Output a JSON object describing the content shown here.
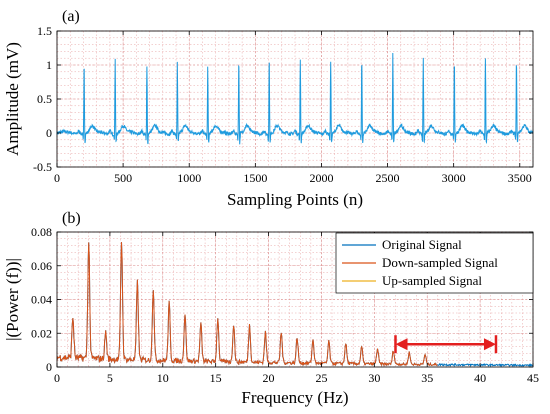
{
  "chart_data": [
    {
      "panel_label": "(a)",
      "type": "line",
      "xlabel": "Sampling Points (n)",
      "ylabel": "Amplitude (mV)",
      "xlim": [
        0,
        3600
      ],
      "ylim": [
        -0.5,
        1.5
      ],
      "xticks": [
        "0",
        "500",
        "1000",
        "1500",
        "2000",
        "2500",
        "3000",
        "3500"
      ],
      "yticks": [
        "-0.5",
        "0",
        "0.5",
        "1",
        "1.5"
      ],
      "grid": true,
      "color": "#1f9bde",
      "baseline": 0.0,
      "r_peaks": [
        {
          "x": 205,
          "y": 1.08
        },
        {
          "x": 440,
          "y": 1.12
        },
        {
          "x": 680,
          "y": 0.98
        },
        {
          "x": 910,
          "y": 1.04
        },
        {
          "x": 1140,
          "y": 0.98
        },
        {
          "x": 1375,
          "y": 1.12
        },
        {
          "x": 1605,
          "y": 1.14
        },
        {
          "x": 1840,
          "y": 1.1
        },
        {
          "x": 2070,
          "y": 1.08
        },
        {
          "x": 2305,
          "y": 1.1
        },
        {
          "x": 2540,
          "y": 1.18
        },
        {
          "x": 2770,
          "y": 1.1
        },
        {
          "x": 3005,
          "y": 1.1
        },
        {
          "x": 3240,
          "y": 1.1
        },
        {
          "x": 3475,
          "y": 1.1
        }
      ]
    },
    {
      "panel_label": "(b)",
      "type": "line",
      "xlabel": "Frequency (Hz)",
      "ylabel": "|(Power (f))|",
      "xlim": [
        0,
        45
      ],
      "ylim": [
        0,
        0.08
      ],
      "xticks": [
        "0",
        "5",
        "10",
        "15",
        "20",
        "25",
        "30",
        "35",
        "40",
        "45"
      ],
      "yticks": [
        "0",
        "0.02",
        "0.04",
        "0.06",
        "0.08"
      ],
      "grid": true,
      "legend_position": "top-right",
      "series": [
        {
          "name": "Original Signal",
          "color": "#0072bd",
          "extent_hz": [
            0,
            45
          ]
        },
        {
          "name": "Down-sampled Signal",
          "color": "#d95319",
          "extent_hz": [
            0,
            36
          ]
        },
        {
          "name": "Up-sampled Signal",
          "color": "#edb120",
          "extent_hz": [
            0,
            36
          ]
        }
      ],
      "harmonic_peaks": [
        {
          "x": 1.5,
          "y": 0.024
        },
        {
          "x": 3.0,
          "y": 0.068
        },
        {
          "x": 4.6,
          "y": 0.016
        },
        {
          "x": 6.1,
          "y": 0.07
        },
        {
          "x": 7.6,
          "y": 0.046
        },
        {
          "x": 9.1,
          "y": 0.042
        },
        {
          "x": 10.6,
          "y": 0.034
        },
        {
          "x": 12.1,
          "y": 0.028
        },
        {
          "x": 13.6,
          "y": 0.022
        },
        {
          "x": 15.2,
          "y": 0.026
        },
        {
          "x": 16.7,
          "y": 0.022
        },
        {
          "x": 18.2,
          "y": 0.022
        },
        {
          "x": 19.7,
          "y": 0.018
        },
        {
          "x": 21.2,
          "y": 0.018
        },
        {
          "x": 22.7,
          "y": 0.015
        },
        {
          "x": 24.2,
          "y": 0.014
        },
        {
          "x": 25.7,
          "y": 0.013
        },
        {
          "x": 27.3,
          "y": 0.012
        },
        {
          "x": 28.8,
          "y": 0.01
        },
        {
          "x": 30.3,
          "y": 0.009
        },
        {
          "x": 31.8,
          "y": 0.008
        },
        {
          "x": 33.3,
          "y": 0.007
        },
        {
          "x": 34.8,
          "y": 0.006
        }
      ],
      "annotation_arrow": {
        "x_from": 32,
        "x_to": 41.5,
        "y": 0.0135,
        "color": "#e31e1e",
        "style": "double-headed with end bars"
      }
    }
  ]
}
